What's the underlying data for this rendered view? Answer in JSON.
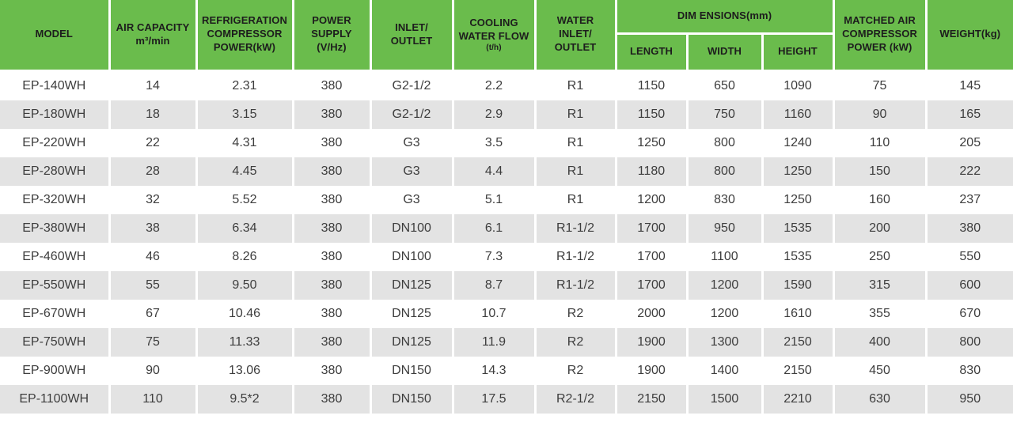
{
  "colors": {
    "header_green": "#6abc4c",
    "row_alt_gray": "#e3e3e3",
    "header_text": "#1d1d1d",
    "body_text": "#3d3d3d"
  },
  "header": {
    "model": "MODEL",
    "air_capacity": "AIR CAPACITY\nm³/min",
    "refrigeration": "REFRIGERATION\nCOMPRESSOR\nPOWER(kW)",
    "power_supply": "POWER\nSUPPLY\n(V/Hz)",
    "inlet_outlet": "INLET/\nOUTLET",
    "cooling_title": "COOLING\nWATER FLOW",
    "cooling_sub": "(t/h)",
    "water_inlet_outlet": "WATER\nINLET/\nOUTLET",
    "dimensions": "DIM ENSIONS(mm)",
    "length": "LENGTH",
    "width": "WIDTH",
    "height": "HEIGHT",
    "matched_air": "MATCHED AIR\nCOMPRESSOR\nPOWER (kW)",
    "weight": "WEIGHT(kg)"
  },
  "rows": [
    [
      "EP-140WH",
      "14",
      "2.31",
      "380",
      "G2-1/2",
      "2.2",
      "R1",
      "1150",
      "650",
      "1090",
      "75",
      "145"
    ],
    [
      "EP-180WH",
      "18",
      "3.15",
      "380",
      "G2-1/2",
      "2.9",
      "R1",
      "1150",
      "750",
      "1160",
      "90",
      "165"
    ],
    [
      "EP-220WH",
      "22",
      "4.31",
      "380",
      "G3",
      "3.5",
      "R1",
      "1250",
      "800",
      "1240",
      "110",
      "205"
    ],
    [
      "EP-280WH",
      "28",
      "4.45",
      "380",
      "G3",
      "4.4",
      "R1",
      "1180",
      "800",
      "1250",
      "150",
      "222"
    ],
    [
      "EP-320WH",
      "32",
      "5.52",
      "380",
      "G3",
      "5.1",
      "R1",
      "1200",
      "830",
      "1250",
      "160",
      "237"
    ],
    [
      "EP-380WH",
      "38",
      "6.34",
      "380",
      "DN100",
      "6.1",
      "R1-1/2",
      "1700",
      "950",
      "1535",
      "200",
      "380"
    ],
    [
      "EP-460WH",
      "46",
      "8.26",
      "380",
      "DN100",
      "7.3",
      "R1-1/2",
      "1700",
      "1100",
      "1535",
      "250",
      "550"
    ],
    [
      "EP-550WH",
      "55",
      "9.50",
      "380",
      "DN125",
      "8.7",
      "R1-1/2",
      "1700",
      "1200",
      "1590",
      "315",
      "600"
    ],
    [
      "EP-670WH",
      "67",
      "10.46",
      "380",
      "DN125",
      "10.7",
      "R2",
      "2000",
      "1200",
      "1610",
      "355",
      "670"
    ],
    [
      "EP-750WH",
      "75",
      "11.33",
      "380",
      "DN125",
      "11.9",
      "R2",
      "1900",
      "1300",
      "2150",
      "400",
      "800"
    ],
    [
      "EP-900WH",
      "90",
      "13.06",
      "380",
      "DN150",
      "14.3",
      "R2",
      "1900",
      "1400",
      "2150",
      "450",
      "830"
    ],
    [
      "EP-1100WH",
      "110",
      "9.5*2",
      "380",
      "DN150",
      "17.5",
      "R2-1/2",
      "2150",
      "1500",
      "2210",
      "630",
      "950"
    ]
  ]
}
